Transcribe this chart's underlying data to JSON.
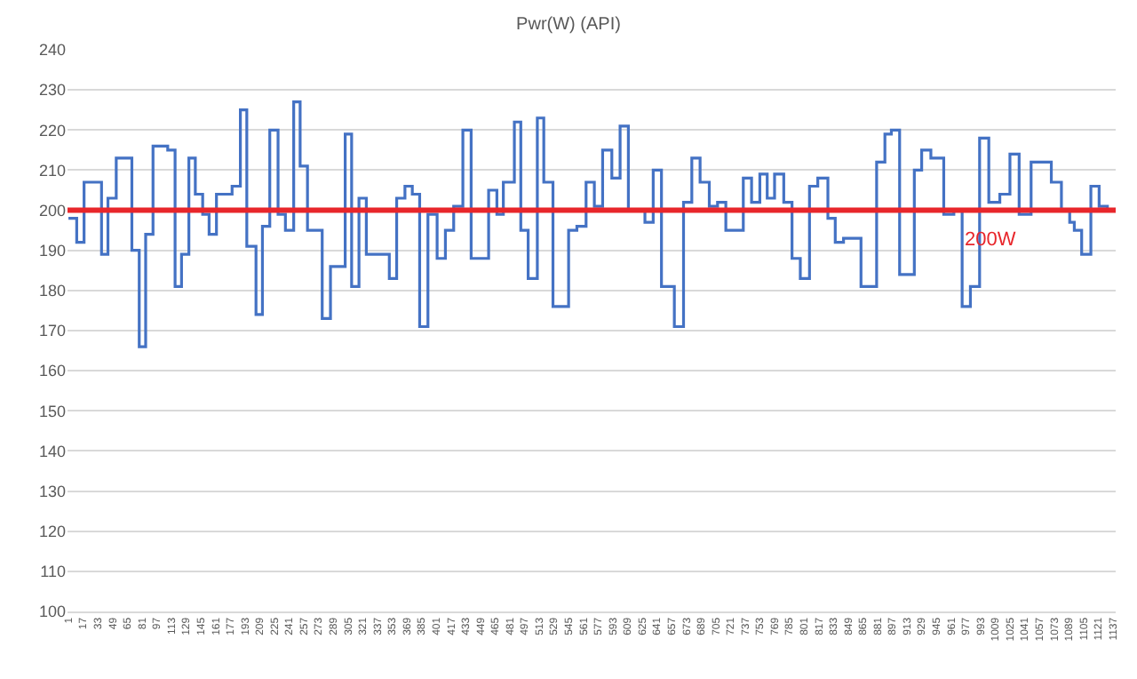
{
  "chart_data": {
    "type": "step",
    "title": "Pwr(W) (API)",
    "x": [
      1,
      10,
      18,
      37,
      44,
      53,
      70,
      78,
      85,
      93,
      109,
      117,
      124,
      132,
      139,
      147,
      154,
      162,
      179,
      188,
      195,
      205,
      212,
      220,
      229,
      237,
      246,
      253,
      261,
      277,
      286,
      302,
      309,
      317,
      325,
      350,
      358,
      367,
      375,
      383,
      392,
      402,
      411,
      420,
      430,
      439,
      458,
      467,
      474,
      486,
      493,
      501,
      511,
      518,
      528,
      545,
      554,
      564,
      573,
      582,
      592,
      601,
      610,
      628,
      637,
      646,
      660,
      670,
      679,
      688,
      698,
      707,
      716,
      735,
      744,
      753,
      761,
      769,
      779,
      788,
      797,
      807,
      816,
      827,
      835,
      844,
      863,
      880,
      889,
      896,
      905,
      921,
      929,
      939,
      953,
      964,
      973,
      982,
      992,
      1002,
      1014,
      1025,
      1035,
      1048,
      1070,
      1081,
      1090,
      1095,
      1103,
      1113,
      1122,
      1131,
      1137
    ],
    "series": [
      {
        "color": "#4472c4",
        "values": [
          198,
          192,
          207,
          189,
          203,
          213,
          190,
          166,
          194,
          216,
          215,
          181,
          189,
          213,
          204,
          199,
          194,
          204,
          206,
          225,
          191,
          174,
          196,
          220,
          199,
          195,
          227,
          211,
          195,
          173,
          186,
          219,
          181,
          203,
          189,
          183,
          203,
          206,
          204,
          171,
          199,
          188,
          195,
          201,
          220,
          188,
          205,
          199,
          207,
          222,
          195,
          183,
          223,
          207,
          176,
          195,
          196,
          207,
          201,
          215,
          208,
          221,
          200,
          197,
          210,
          181,
          171,
          202,
          213,
          207,
          201,
          202,
          195,
          208,
          202,
          209,
          203,
          209,
          202,
          188,
          183,
          206,
          208,
          198,
          192,
          193,
          181,
          212,
          219,
          220,
          184,
          210,
          215,
          213,
          199,
          200,
          176,
          181,
          218,
          202,
          204,
          214,
          199,
          212,
          207,
          200,
          197,
          195,
          189,
          206,
          201,
          200,
          200
        ]
      }
    ],
    "xlim": [
      0,
      1140
    ],
    "xticks": [
      1,
      17,
      33,
      49,
      65,
      81,
      97,
      113,
      129,
      145,
      161,
      177,
      193,
      209,
      225,
      241,
      257,
      273,
      289,
      305,
      321,
      337,
      353,
      369,
      385,
      401,
      417,
      433,
      449,
      465,
      481,
      497,
      513,
      529,
      545,
      561,
      577,
      593,
      609,
      625,
      641,
      657,
      673,
      689,
      705,
      721,
      737,
      753,
      769,
      785,
      801,
      817,
      833,
      849,
      865,
      881,
      897,
      913,
      929,
      945,
      961,
      977,
      993,
      1009,
      1025,
      1041,
      1057,
      1073,
      1089,
      1105,
      1121,
      1137
    ],
    "ylim": [
      100,
      240
    ],
    "yticks": [
      100,
      110,
      120,
      130,
      140,
      150,
      160,
      170,
      180,
      190,
      200,
      210,
      220,
      230,
      240
    ],
    "grid": "y",
    "ref_lines": [
      {
        "axis": "y",
        "value": 200,
        "label": "200W",
        "color": "#e8262b"
      }
    ]
  }
}
